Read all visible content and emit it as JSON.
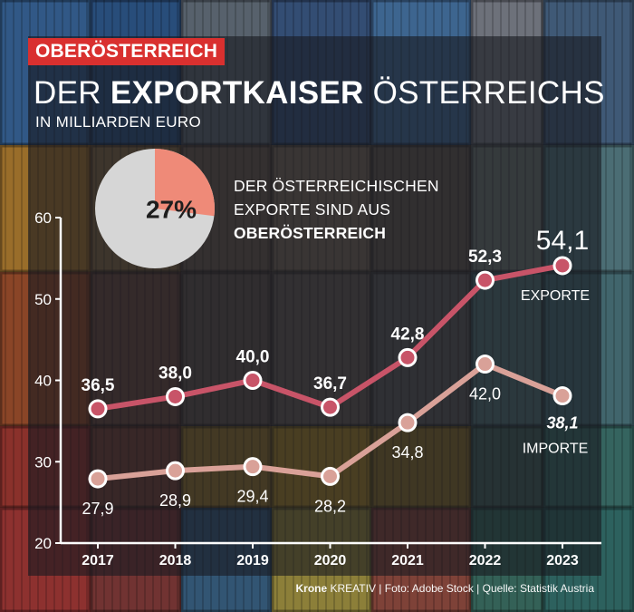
{
  "header": {
    "region_tag": "OBERÖSTERREICH",
    "title_prefix": "DER ",
    "title_bold": "EXPORTKAISER",
    "title_suffix": " ÖSTERREICHS",
    "subtitle": "IN MILLIARDEN EURO"
  },
  "share": {
    "value_label": "27%",
    "fraction": 0.27,
    "line1": "DER ÖSTERREICHISCHEN",
    "line2": "EXPORTE SIND AUS",
    "line3": "OBERÖSTERREICH",
    "color_share": "#ef8a78",
    "color_rest": "#d6d6d6"
  },
  "footer": {
    "brand": "Krone",
    "brand_rest": " KREATIV",
    "separator": " | ",
    "photo": "Foto: Adobe Stock",
    "source": "Quelle: Statistik Austria"
  },
  "chart_data": {
    "type": "line",
    "x": [
      "2017",
      "2018",
      "2019",
      "2020",
      "2021",
      "2022",
      "2023"
    ],
    "ylim": [
      20,
      60
    ],
    "yticks": [
      "20",
      "30",
      "40",
      "50",
      "60"
    ],
    "series": [
      {
        "name": "EXPORTE",
        "values": [
          36.5,
          38.0,
          40.0,
          36.7,
          42.8,
          52.3,
          54.1
        ],
        "labels": [
          "36,5",
          "38,0",
          "40,0",
          "36,7",
          "42,8",
          "52,3",
          "54,1"
        ],
        "color": "#c85468"
      },
      {
        "name": "IMPORTE",
        "values": [
          27.9,
          28.9,
          29.4,
          28.2,
          34.8,
          42.0,
          38.1
        ],
        "labels": [
          "27,9",
          "28,9",
          "29,4",
          "28,2",
          "34,8",
          "42,0",
          "38,1"
        ],
        "color": "#d9a198"
      }
    ]
  }
}
